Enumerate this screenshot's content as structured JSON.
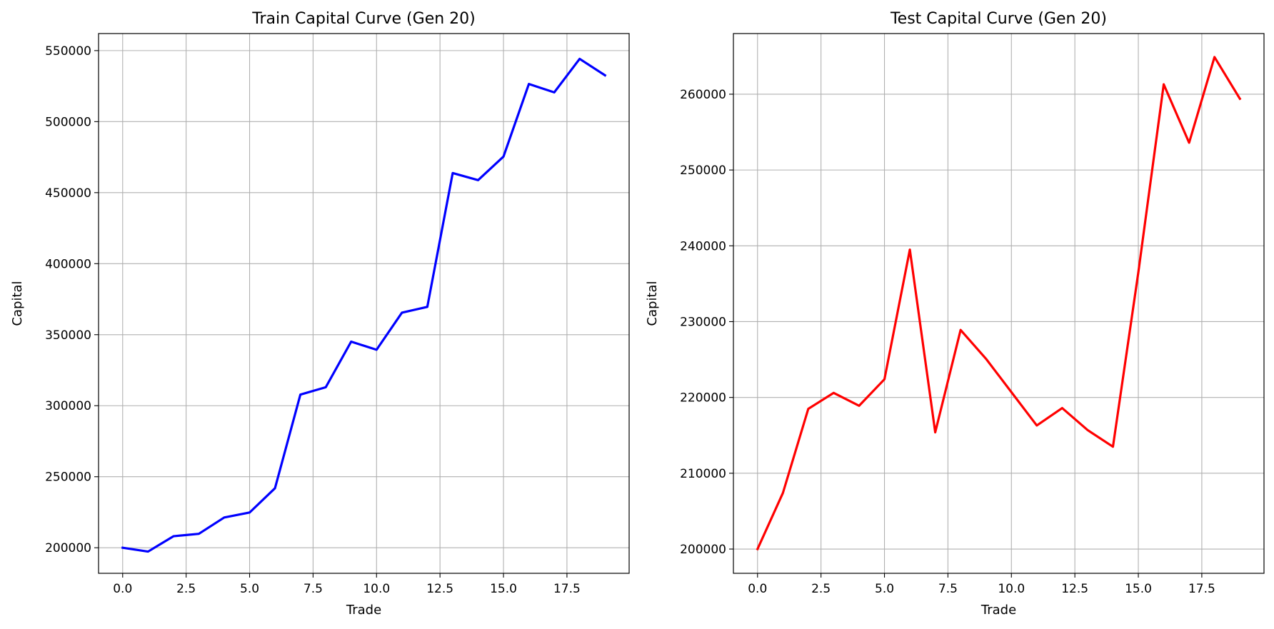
{
  "chart_data": [
    {
      "type": "line",
      "title": "Train Capital Curve (Gen 20)",
      "xlabel": "Trade",
      "ylabel": "Capital",
      "xlim": [
        -0.95,
        19.95
      ],
      "ylim": [
        182000,
        562000
      ],
      "xticks": [
        0,
        2.5,
        5,
        7.5,
        10,
        12.5,
        15,
        17.5
      ],
      "xtick_labels": [
        "0.0",
        "2.5",
        "5.0",
        "7.5",
        "10.0",
        "12.5",
        "15.0",
        "17.5"
      ],
      "yticks": [
        200000,
        250000,
        300000,
        350000,
        400000,
        450000,
        500000,
        550000
      ],
      "ytick_labels": [
        "200000",
        "250000",
        "300000",
        "350000",
        "400000",
        "450000",
        "500000",
        "550000"
      ],
      "grid": true,
      "series": [
        {
          "color": "#0000ff",
          "x": [
            0,
            1,
            2,
            3,
            4,
            5,
            6,
            7,
            8,
            9,
            10,
            11,
            12,
            13,
            14,
            15,
            16,
            17,
            18,
            19
          ],
          "y": [
            200000,
            197300,
            208100,
            209800,
            221300,
            224800,
            241900,
            307800,
            313000,
            345100,
            339400,
            365500,
            369600,
            463800,
            458800,
            475400,
            526500,
            520600,
            544200,
            532600
          ]
        }
      ]
    },
    {
      "type": "line",
      "title": "Test Capital Curve (Gen 20)",
      "xlabel": "Trade",
      "ylabel": "Capital",
      "xlim": [
        -0.95,
        19.95
      ],
      "ylim": [
        196800,
        268000
      ],
      "xticks": [
        0,
        2.5,
        5,
        7.5,
        10,
        12.5,
        15,
        17.5
      ],
      "xtick_labels": [
        "0.0",
        "2.5",
        "5.0",
        "7.5",
        "10.0",
        "12.5",
        "15.0",
        "17.5"
      ],
      "yticks": [
        200000,
        210000,
        220000,
        230000,
        240000,
        250000,
        260000
      ],
      "ytick_labels": [
        "200000",
        "210000",
        "220000",
        "230000",
        "240000",
        "250000",
        "260000"
      ],
      "grid": true,
      "series": [
        {
          "color": "#ff0000",
          "x": [
            0,
            1,
            2,
            3,
            4,
            5,
            6,
            7,
            8,
            9,
            10,
            11,
            12,
            13,
            14,
            15,
            16,
            17,
            18,
            19
          ],
          "y": [
            200000,
            207400,
            218500,
            220600,
            218900,
            222400,
            239500,
            215400,
            228900,
            225100,
            220700,
            216300,
            218600,
            215700,
            213500,
            236500,
            261300,
            253600,
            264900,
            259400
          ]
        }
      ]
    }
  ]
}
